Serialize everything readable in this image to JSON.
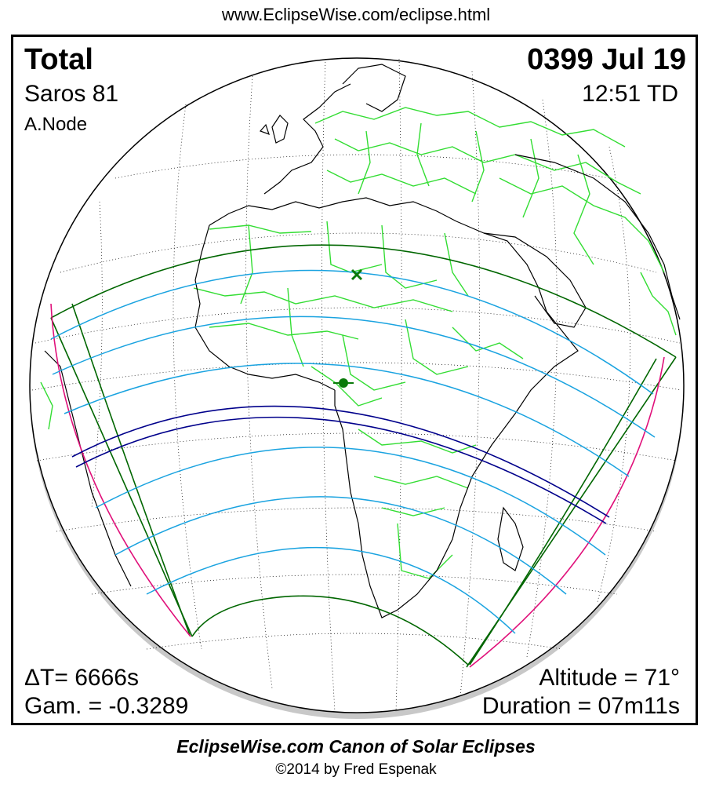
{
  "header": {
    "url": "www.EclipseWise.com/eclipse.html"
  },
  "eclipse": {
    "type": "Total",
    "date": "0399 Jul 19",
    "saros": "Saros  81",
    "time": "12:51 TD",
    "node": "A.Node",
    "delta_t": "ΔT=   6666s",
    "gamma": "Gam. = -0.3289",
    "altitude": "Altitude = 71°",
    "duration": "Duration = 07m11s"
  },
  "footer": {
    "canon": "EclipseWise.com Canon of Solar Eclipses",
    "copyright": "©2014 by Fred Espenak"
  },
  "colors": {
    "coastline": "#000000",
    "borders": "#33dd33",
    "penumbra_limits": "#006600",
    "obscuration_lines": "#1aa3e0",
    "central_path": "#00008b",
    "rise_set_curves": "#e0107a",
    "night_shadow": "#c8c8c8"
  },
  "markers": {
    "greatest_eclipse": "green-x",
    "greatest_duration": "green-dot"
  }
}
